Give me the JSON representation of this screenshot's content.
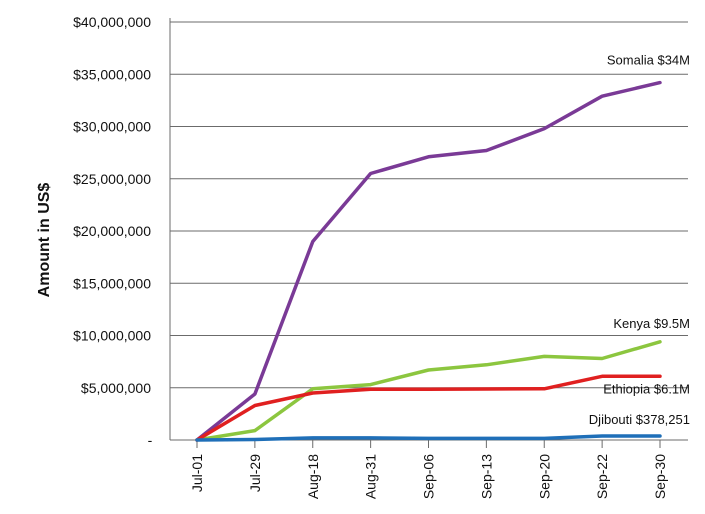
{
  "chart_data": {
    "type": "line",
    "title": "",
    "xlabel": "",
    "ylabel": "Amount in US$",
    "categories": [
      "Jul-01",
      "Jul-29",
      "Aug-18",
      "Aug-31",
      "Sep-06",
      "Sep-13",
      "Sep-20",
      "Sep-22",
      "Sep-30"
    ],
    "y_tick_labels": [
      "-",
      "$5,000,000",
      "$10,000,000",
      "$15,000,000",
      "$20,000,000",
      "$25,000,000",
      "$30,000,000",
      "$35,000,000",
      "$40,000,000"
    ],
    "ylim": [
      0,
      40000000
    ],
    "grid": true,
    "series": [
      {
        "label": "Somalia $34M",
        "color": "#7a3a96",
        "values": [
          0,
          4400000,
          19000000,
          25500000,
          27100000,
          27700000,
          29800000,
          32900000,
          34200000
        ]
      },
      {
        "label": "Kenya $9.5M",
        "color": "#8cc63f",
        "values": [
          0,
          900000,
          4900000,
          5300000,
          6700000,
          7200000,
          8000000,
          7800000,
          9400000
        ]
      },
      {
        "label": "Ethiopia $6.1M",
        "color": "#e02020",
        "values": [
          0,
          3300000,
          4500000,
          4850000,
          4850000,
          4880000,
          4900000,
          6100000,
          6100000
        ]
      },
      {
        "label": "Djibouti $378,251",
        "color": "#1f6fb8",
        "values": [
          0,
          50000,
          200000,
          200000,
          150000,
          150000,
          150000,
          378251,
          378251
        ]
      }
    ]
  }
}
